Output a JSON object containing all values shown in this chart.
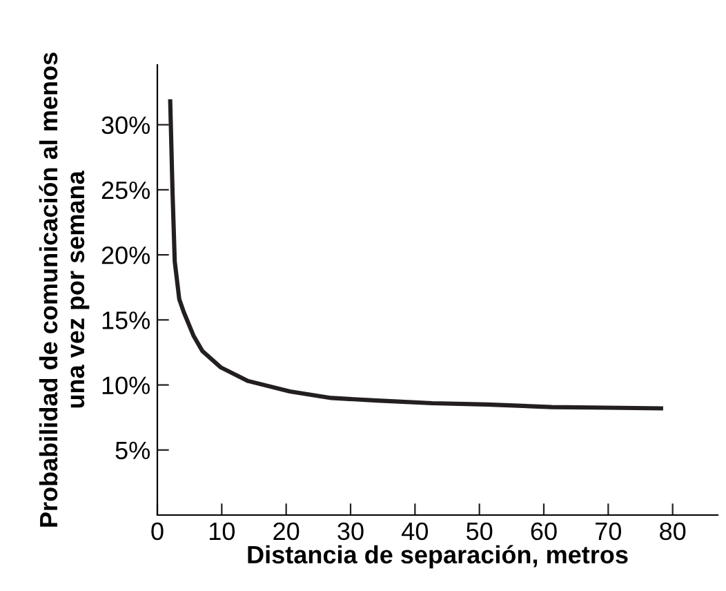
{
  "chart_data": {
    "type": "line",
    "xlabel": "Distancia de separación, metros",
    "ylabel": "Probabilidad de comunicación al menos\nuna vez por semana",
    "x": [
      2.0,
      2.36,
      2.7,
      3.4,
      4.1,
      5.6,
      7.0,
      9.85,
      14.1,
      20.6,
      27,
      34.1,
      42.7,
      51.2,
      61.2,
      69.8,
      78.2
    ],
    "series": [
      {
        "color": "#231f20",
        "values": [
          31.8,
          24.8,
          19.5,
          16.6,
          15.6,
          13.8,
          12.6,
          11.35,
          10.3,
          9.5,
          9.0,
          8.8,
          8.6,
          8.5,
          8.3,
          8.25,
          8.2
        ]
      }
    ],
    "xlim": [
      0,
      87
    ],
    "ylim": [
      0,
      34.6
    ],
    "xticks": [
      0,
      10,
      20,
      30,
      40,
      50,
      60,
      70,
      80
    ],
    "yticks": [
      {
        "value": 5,
        "label": "5%"
      },
      {
        "value": 10,
        "label": "10%"
      },
      {
        "value": 15,
        "label": "15%"
      },
      {
        "value": 20,
        "label": "20%"
      },
      {
        "value": 25,
        "label": "25%"
      },
      {
        "value": 30,
        "label": "30%"
      }
    ],
    "grid": false,
    "legend": false,
    "marker": "none",
    "line_style": "solid"
  }
}
